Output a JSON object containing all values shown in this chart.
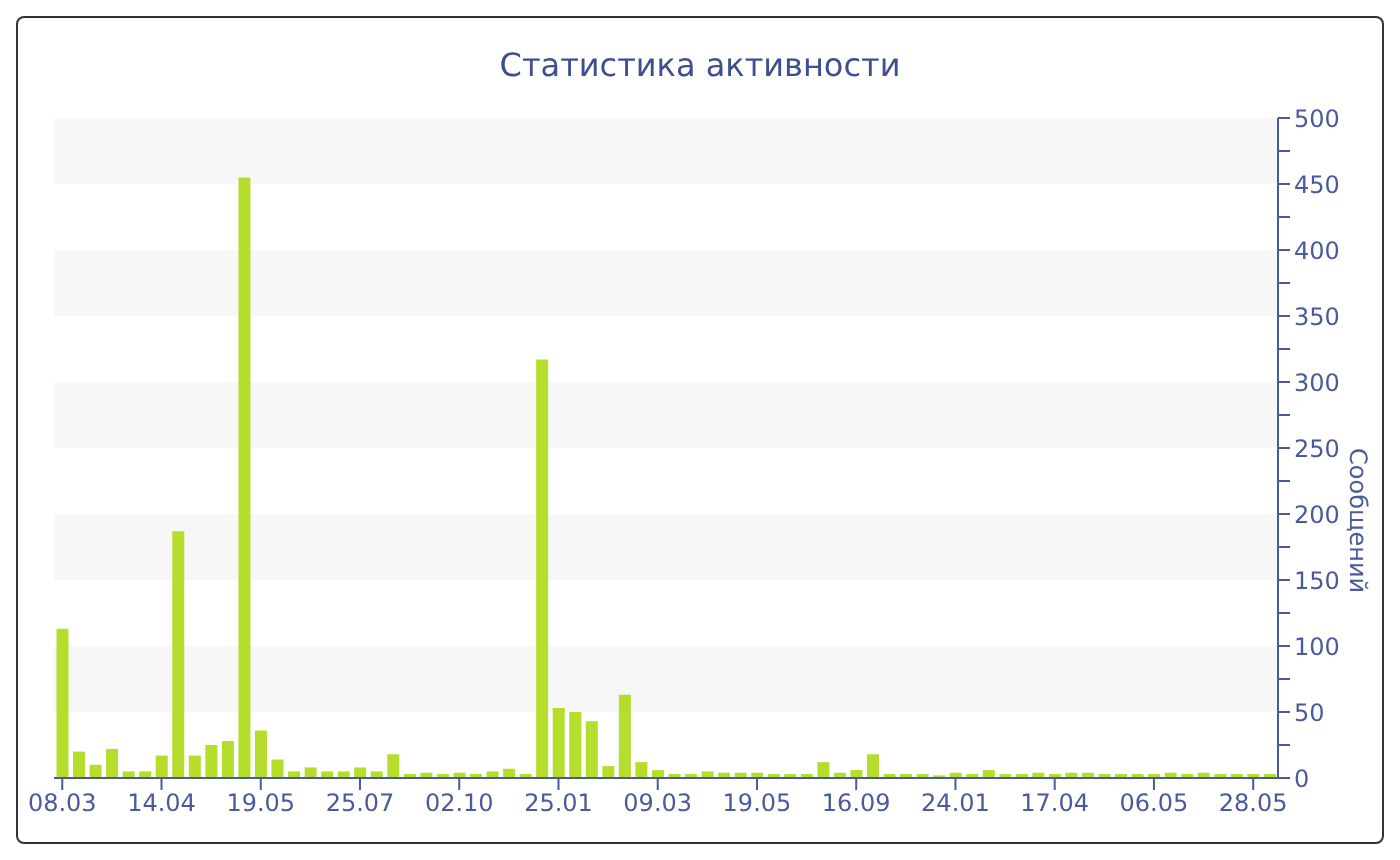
{
  "chart_data": {
    "type": "bar",
    "title": "Статистика активности",
    "ylabel": "Сообщений",
    "categories": [
      "08.03",
      null,
      null,
      null,
      null,
      null,
      "14.04",
      null,
      null,
      null,
      null,
      null,
      "19.05",
      null,
      null,
      null,
      null,
      null,
      "25.07",
      null,
      null,
      null,
      null,
      null,
      "02.10",
      null,
      null,
      null,
      null,
      null,
      "25.01",
      null,
      null,
      null,
      null,
      null,
      "09.03",
      null,
      null,
      null,
      null,
      null,
      "19.05",
      null,
      null,
      null,
      null,
      null,
      "16.09",
      null,
      null,
      null,
      null,
      null,
      "24.01",
      null,
      null,
      null,
      null,
      null,
      "17.04",
      null,
      null,
      null,
      null,
      null,
      "06.05",
      null,
      null,
      null,
      null,
      null,
      "28.05",
      null
    ],
    "values": [
      113,
      20,
      10,
      22,
      5,
      5,
      17,
      187,
      17,
      25,
      28,
      455,
      36,
      14,
      5,
      8,
      5,
      5,
      8,
      5,
      18,
      3,
      4,
      3,
      4,
      3,
      5,
      7,
      3,
      317,
      53,
      50,
      43,
      9,
      63,
      12,
      6,
      3,
      3,
      5,
      4,
      4,
      4,
      3,
      3,
      3,
      12,
      4,
      6,
      18,
      3,
      3,
      3,
      2,
      4,
      3,
      6,
      3,
      3,
      4,
      3,
      4,
      4,
      3,
      3,
      3,
      3,
      4,
      3,
      4,
      3,
      3,
      3,
      3
    ],
    "color": "#b5dd2c",
    "ylim": [
      0,
      500
    ],
    "yticks": [
      0,
      {
        "value": 25,
        "label": null
      },
      50,
      {
        "value": 75,
        "label": null
      },
      100,
      {
        "value": 125,
        "label": null
      },
      150,
      {
        "value": 175,
        "label": null
      },
      200,
      {
        "value": 225,
        "label": null
      },
      250,
      {
        "value": 275,
        "label": null
      },
      300,
      {
        "value": 325,
        "label": null
      },
      350,
      {
        "value": 375,
        "label": null
      },
      400,
      {
        "value": 425,
        "label": null
      },
      450,
      {
        "value": 475,
        "label": null
      },
      500
    ],
    "bands": [
      {
        "axis": "y",
        "from": 50,
        "to": 100,
        "color": "#f7f7f7"
      },
      {
        "axis": "y",
        "from": 150,
        "to": 200,
        "color": "#f7f7f7"
      },
      {
        "axis": "y",
        "from": 250,
        "to": 300,
        "color": "#f7f7f7"
      },
      {
        "axis": "y",
        "from": 350,
        "to": 400,
        "color": "#f7f7f7"
      },
      {
        "axis": "y",
        "from": 450,
        "to": 500,
        "color": "#f7f7f7"
      }
    ]
  }
}
